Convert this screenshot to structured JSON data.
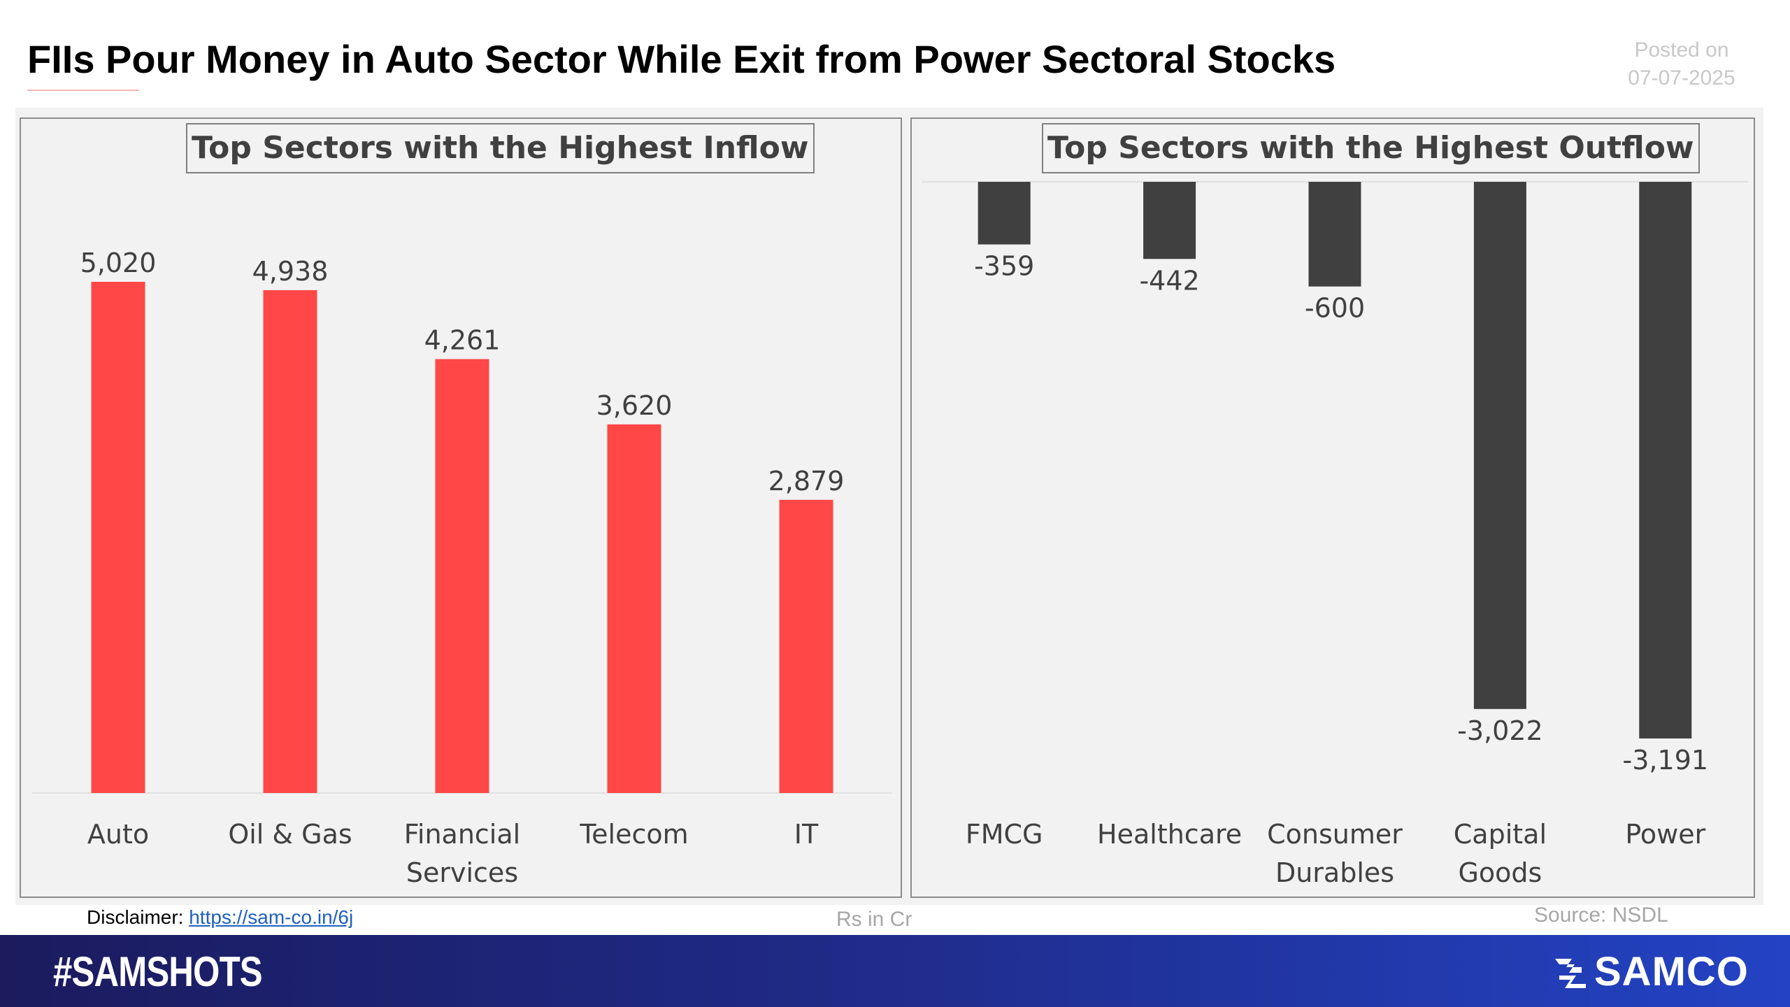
{
  "header": {
    "title": "FIIs Pour Money in Auto Sector While Exit from Power Sectoral Stocks",
    "posted_label": "Posted on",
    "posted_date": "07-07-2025"
  },
  "chart_data": [
    {
      "type": "bar",
      "title": "Top Sectors with the Highest Inflow",
      "categories": [
        "Auto",
        "Oil & Gas",
        "Financial Services",
        "Telecom",
        "IT"
      ],
      "category_lines": [
        [
          "Auto"
        ],
        [
          "Oil & Gas"
        ],
        [
          "Financial",
          "Services"
        ],
        [
          "Telecom"
        ],
        [
          "IT"
        ]
      ],
      "values": [
        5020,
        4938,
        4261,
        3620,
        2879
      ],
      "value_labels": [
        "5,020",
        "4,938",
        "4,261",
        "3,620",
        "2,879"
      ],
      "color": "#ff4747",
      "ylim": [
        0,
        5020
      ]
    },
    {
      "type": "bar",
      "title": "Top Sectors with the Highest Outflow",
      "categories": [
        "FMCG",
        "Healthcare",
        "Consumer Durables",
        "Capital Goods",
        "Power"
      ],
      "category_lines": [
        [
          "FMCG"
        ],
        [
          "Healthcare"
        ],
        [
          "Consumer",
          "Durables"
        ],
        [
          "Capital",
          "Goods"
        ],
        [
          "Power"
        ]
      ],
      "values": [
        -359,
        -442,
        -600,
        -3022,
        -3191
      ],
      "value_labels": [
        "-359",
        "-442",
        "-600",
        "-3,022",
        "-3,191"
      ],
      "color": "#404040",
      "ylim": [
        -3191,
        0
      ]
    }
  ],
  "notes": {
    "disclaimer_label": "Disclaimer: ",
    "disclaimer_link": "https://sam-co.in/6j",
    "units": "Rs in Cr",
    "source": "Source: NSDL"
  },
  "footer": {
    "hashtag": "#SAMSHOTS",
    "brand": "SAMCO"
  },
  "colors": {
    "inflow_bar": "#ff4747",
    "outflow_bar": "#404040",
    "footer_start": "#1b1b5e",
    "footer_end": "#2343c4"
  }
}
